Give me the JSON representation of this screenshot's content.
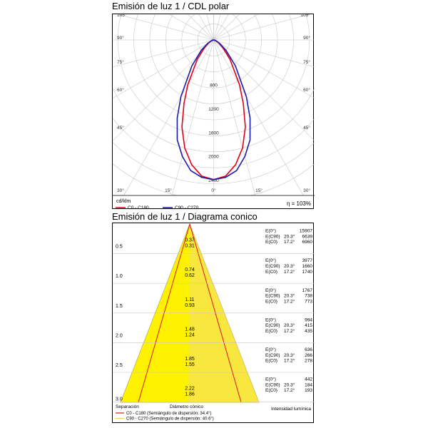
{
  "polar": {
    "title": "Emisión de luz 1 / CDL polar",
    "unit_label": "cd/klm",
    "efficiency": "η = 103%",
    "legend": [
      {
        "label": "C0 - C180",
        "color": "#e0001a"
      },
      {
        "label": "C90 - C270",
        "color": "#1a1aa8"
      }
    ]
  },
  "cone": {
    "title": "Emisión de luz 1 / Diagrama conico",
    "footer_left": "Separación",
    "footer_mid": "Diámetro cónico",
    "footer_right": "Intensidad lumínica",
    "legend": [
      {
        "label": "C0 - C180 (Semiángulo de dispersión: 34.4°)",
        "color": "#d81818"
      },
      {
        "label": "C90 - C270 (Semiángulo de dispersión: 40.6°)",
        "color": "#e6c86e"
      }
    ],
    "rows": [
      {
        "distance": "0.5",
        "d1": "0.37",
        "d2": "0.31",
        "lines": [
          [
            "E(0°)",
            "",
            "15907"
          ],
          [
            "E(C90)",
            "20.3°",
            "6639"
          ],
          [
            "E(C0)",
            "17.2°",
            "6960"
          ]
        ]
      },
      {
        "distance": "1.0",
        "d1": "0.74",
        "d2": "0.62",
        "lines": [
          [
            "E(0°)",
            "",
            "3977"
          ],
          [
            "E(C90)",
            "20.3°",
            "1660"
          ],
          [
            "E(C0)",
            "17.2°",
            "1740"
          ]
        ]
      },
      {
        "distance": "1.5",
        "d1": "1.11",
        "d2": "0.93",
        "lines": [
          [
            "E(0°)",
            "",
            "1767"
          ],
          [
            "E(C90)",
            "20.3°",
            "738"
          ],
          [
            "E(C0)",
            "17.2°",
            "773"
          ]
        ]
      },
      {
        "distance": "2.0",
        "d1": "1.48",
        "d2": "1.24",
        "lines": [
          [
            "E(0°)",
            "",
            "994"
          ],
          [
            "E(C90)",
            "20.3°",
            "415"
          ],
          [
            "E(C0)",
            "17.2°",
            "435"
          ]
        ]
      },
      {
        "distance": "2.5",
        "d1": "1.85",
        "d2": "1.55",
        "lines": [
          [
            "E(0°)",
            "",
            "636"
          ],
          [
            "E(C90)",
            "20.3°",
            "266"
          ],
          [
            "E(C0)",
            "17.2°",
            "278"
          ]
        ]
      },
      {
        "distance": "3.0",
        "d1": "2.22",
        "d2": "1.86",
        "lines": [
          [
            "E(0°)",
            "",
            "442"
          ],
          [
            "E(C90)",
            "20.3°",
            "184"
          ],
          [
            "E(C0)",
            "17.2°",
            "193"
          ]
        ]
      }
    ]
  },
  "chart_data": [
    {
      "type": "polar",
      "title": "Emisión de luz 1 / CDL polar",
      "unit": "cd/klm",
      "radial_ticks": [
        800,
        1200,
        1600,
        2000,
        2400
      ],
      "rmax": 2400,
      "angle_labels_left": [
        "105°",
        "90°",
        "75°",
        "60°",
        "45°",
        "30°"
      ],
      "angle_labels_right": [
        "105°",
        "90°",
        "75°",
        "60°",
        "45°",
        "30°"
      ],
      "angle_labels_bottom": [
        "15°",
        "0°",
        "15°"
      ],
      "series": [
        {
          "name": "C0 - C180",
          "color": "#e0001a",
          "angles_deg": [
            0,
            5,
            10,
            15,
            20,
            25,
            30,
            40,
            50,
            60,
            70,
            80,
            90
          ],
          "values": [
            2350,
            2300,
            2130,
            1880,
            1560,
            1180,
            870,
            430,
            200,
            90,
            35,
            10,
            0
          ]
        },
        {
          "name": "C90 - C270",
          "color": "#1a1aa8",
          "angles_deg": [
            0,
            5,
            10,
            15,
            20,
            25,
            30,
            40,
            50,
            60,
            70,
            80,
            90
          ],
          "values": [
            2350,
            2320,
            2230,
            2030,
            1790,
            1450,
            1100,
            570,
            270,
            120,
            45,
            12,
            0
          ]
        }
      ]
    },
    {
      "type": "table",
      "title": "Emisión de luz 1 / Diagrama conico",
      "columns": [
        "Separación",
        "Diámetro cónico",
        "Intensidad lumínica"
      ],
      "distance": [
        0.5,
        1.0,
        1.5,
        2.0,
        2.5,
        3.0
      ],
      "diameter_c90": [
        0.37,
        0.74,
        1.11,
        1.48,
        1.85,
        2.22
      ],
      "diameter_c0": [
        0.31,
        0.62,
        0.93,
        1.24,
        1.55,
        1.86
      ],
      "E_0": [
        15907,
        3977,
        1767,
        994,
        636,
        442
      ],
      "E_C90": [
        6639,
        1660,
        738,
        415,
        266,
        184
      ],
      "E_C0": [
        6960,
        1740,
        773,
        435,
        278,
        193
      ],
      "angle_C90": "20.3°",
      "angle_C0": "17.2°"
    }
  ]
}
